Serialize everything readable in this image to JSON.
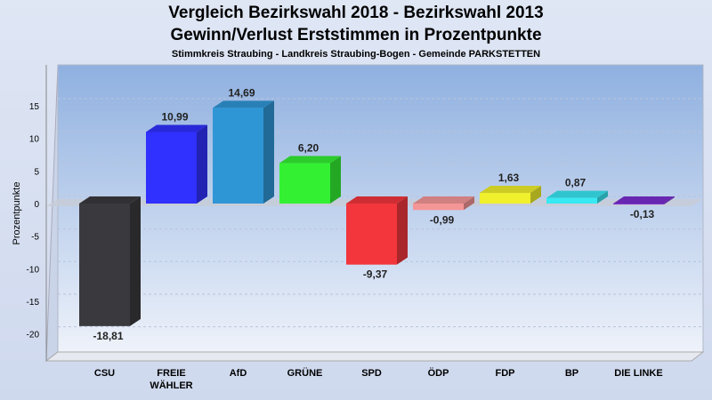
{
  "chart_data": {
    "type": "bar",
    "title": "Vergleich Bezirkswahl 2018 - Bezirkswahl 2013",
    "subtitle": "Gewinn/Verlust Erststimmen in Prozentpunkte",
    "subsubtitle": "Stimmkreis Straubing - Landkreis Straubing-Bogen - Gemeinde PARKSTETTEN",
    "ylabel": "Prozentpunkte",
    "ylim": [
      -23.5,
      19.5
    ],
    "yticks": [
      15,
      10,
      5,
      0,
      -5,
      -10,
      -15,
      -20
    ],
    "grid": true,
    "legend": "none",
    "categories": [
      "CSU",
      "FREIE WÄHLER",
      "AfD",
      "GRÜNE",
      "SPD",
      "ÖDP",
      "FDP",
      "BP",
      "DIE LINKE"
    ],
    "category_lines": [
      [
        "CSU"
      ],
      [
        "FREIE",
        "WÄHLER"
      ],
      [
        "AfD"
      ],
      [
        "GRÜNE"
      ],
      [
        "SPD"
      ],
      [
        "ÖDP"
      ],
      [
        "FDP"
      ],
      [
        "BP"
      ],
      [
        "DIE LINKE"
      ]
    ],
    "values": [
      -18.81,
      10.99,
      14.69,
      6.2,
      -9.37,
      -0.99,
      1.63,
      0.87,
      -0.13
    ],
    "labels": [
      "-18,81",
      "10,99",
      "14,69",
      "6,20",
      "-9,37",
      "-0,99",
      "1,63",
      "0,87",
      "-0,13"
    ],
    "colors": [
      "#3a3a3e",
      "#3030ff",
      "#2f96d6",
      "#33f033",
      "#f2363c",
      "#f59696",
      "#f0f02c",
      "#38e8f2",
      "#7a2ed0"
    ]
  }
}
